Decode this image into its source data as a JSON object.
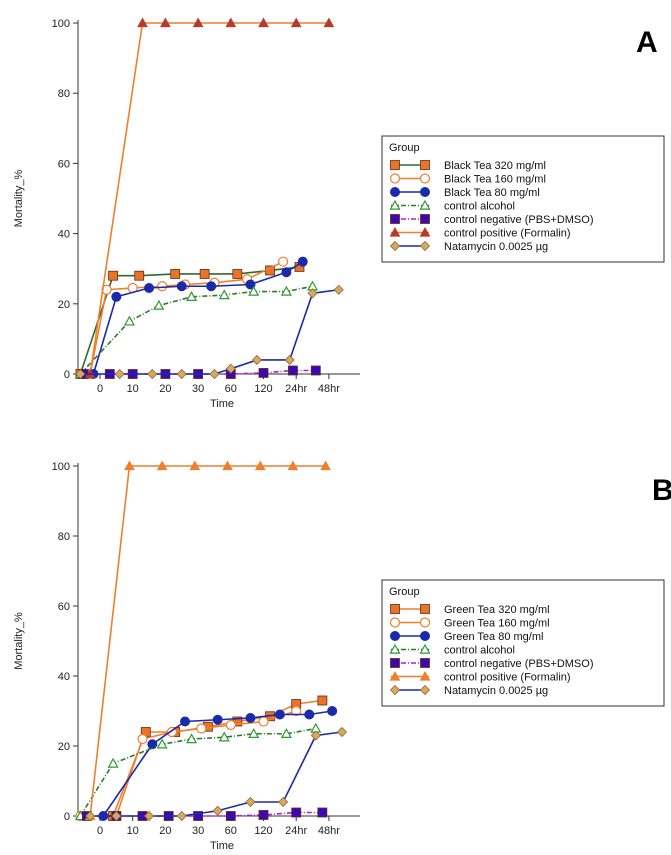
{
  "figure": {
    "panel_letters": [
      "A",
      "B"
    ]
  },
  "chart_data": [
    {
      "type": "line",
      "panel": "A",
      "title": "",
      "xlabel": "Time",
      "ylabel": "Mortality_%",
      "ylim": [
        0,
        100
      ],
      "yticks": [
        0,
        20,
        40,
        60,
        80,
        100
      ],
      "categories": [
        "0",
        "10",
        "20",
        "30",
        "60",
        "120",
        "24hr",
        "48hr"
      ],
      "legend_title": "Group",
      "legend_position": "right",
      "grid": false,
      "series": [
        {
          "name": "Black Tea 320 mg/ml",
          "color": "#2e6b2e",
          "marker": "square",
          "marker_color": "#e8742a",
          "dash": "solid",
          "points": [
            [
              -0.6,
              0
            ],
            [
              0.4,
              28
            ],
            [
              1.2,
              28
            ],
            [
              2.3,
              28.5
            ],
            [
              3.2,
              28.5
            ],
            [
              4.2,
              28.5
            ],
            [
              5.2,
              29.5
            ],
            [
              6.1,
              30.5
            ]
          ]
        },
        {
          "name": "Black Tea 160 mg/ml",
          "color": "#ee7f2e",
          "marker": "circle-open",
          "marker_color": "#ee7f2e",
          "dash": "solid",
          "points": [
            [
              -0.3,
              0
            ],
            [
              0.2,
              24
            ],
            [
              1.0,
              24.5
            ],
            [
              1.9,
              25
            ],
            [
              2.6,
              25.5
            ],
            [
              3.5,
              26
            ],
            [
              4.5,
              27
            ],
            [
              5.6,
              32
            ]
          ]
        },
        {
          "name": "Black Tea 80 mg/ml",
          "color": "#1a2aa8",
          "marker": "circle",
          "marker_color": "#1a2aa8",
          "dash": "solid",
          "points": [
            [
              -0.2,
              0
            ],
            [
              0.5,
              22
            ],
            [
              1.5,
              24.5
            ],
            [
              2.5,
              25
            ],
            [
              3.4,
              25
            ],
            [
              4.6,
              25.5
            ],
            [
              5.7,
              29
            ],
            [
              6.2,
              32
            ]
          ]
        },
        {
          "name": "control alcohol",
          "color": "#2d7a2d",
          "marker": "triangle-open",
          "marker_color": "#2d9a2d",
          "dash": "dashdot",
          "points": [
            [
              -0.6,
              0
            ],
            [
              0.9,
              15
            ],
            [
              1.8,
              19.5
            ],
            [
              2.8,
              22
            ],
            [
              3.8,
              22.5
            ],
            [
              4.7,
              23.5
            ],
            [
              5.7,
              23.5
            ],
            [
              6.5,
              25
            ]
          ]
        },
        {
          "name": "control negative (PBS+DMSO)",
          "color": "#b020d0",
          "marker": "square",
          "marker_color": "#3a0ab0",
          "dash": "dashdot",
          "points": [
            [
              -0.5,
              0
            ],
            [
              0.3,
              0
            ],
            [
              1.0,
              0
            ],
            [
              2.0,
              0
            ],
            [
              3.0,
              0
            ],
            [
              4.0,
              0
            ],
            [
              5.0,
              0.3
            ],
            [
              5.9,
              1
            ],
            [
              6.6,
              1
            ]
          ]
        },
        {
          "name": "control positive (Formalin)",
          "color": "#ee7f2e",
          "marker": "triangle",
          "marker_color": "#b83a2a",
          "dash": "solid",
          "points": [
            [
              -0.3,
              0
            ],
            [
              1.3,
              100
            ],
            [
              2.0,
              100
            ],
            [
              3.0,
              100
            ],
            [
              4.0,
              100
            ],
            [
              5.0,
              100
            ],
            [
              6.0,
              100
            ],
            [
              7.0,
              100
            ]
          ]
        },
        {
          "name": "Natamycin 0.0025 µg",
          "color": "#1a2aa8",
          "marker": "diamond",
          "marker_color": "#d8a860",
          "dash": "solid",
          "points": [
            [
              -0.6,
              0
            ],
            [
              0.6,
              0
            ],
            [
              1.6,
              0
            ],
            [
              2.5,
              0
            ],
            [
              3.5,
              0
            ],
            [
              4.0,
              1.5
            ],
            [
              4.8,
              4
            ],
            [
              5.8,
              4
            ],
            [
              6.5,
              23
            ],
            [
              7.3,
              24
            ]
          ]
        }
      ]
    },
    {
      "type": "line",
      "panel": "B",
      "title": "",
      "xlabel": "Time",
      "ylabel": "Mortality_%",
      "ylim": [
        0,
        100
      ],
      "yticks": [
        0,
        20,
        40,
        60,
        80,
        100
      ],
      "categories": [
        "0",
        "10",
        "20",
        "30",
        "60",
        "120",
        "24hr",
        "48hr"
      ],
      "legend_title": "Group",
      "legend_position": "right",
      "grid": false,
      "series": [
        {
          "name": "Green Tea 320 mg/ml",
          "color": "#ee7f2e",
          "marker": "square",
          "marker_color": "#e8742a",
          "dash": "solid",
          "points": [
            [
              0.4,
              0
            ],
            [
              1.4,
              24
            ],
            [
              2.3,
              24
            ],
            [
              3.3,
              25.5
            ],
            [
              4.2,
              27
            ],
            [
              5.2,
              28.5
            ],
            [
              6.0,
              32
            ],
            [
              6.8,
              33
            ]
          ]
        },
        {
          "name": "Green Tea 160 mg/ml",
          "color": "#ee7f2e",
          "marker": "circle-open",
          "marker_color": "#ee7f2e",
          "dash": "solid",
          "points": [
            [
              -0.6,
              0
            ],
            [
              0.5,
              0
            ],
            [
              1.3,
              22
            ],
            [
              2.2,
              24
            ],
            [
              3.1,
              25
            ],
            [
              4.0,
              26
            ],
            [
              5.0,
              27
            ],
            [
              6.0,
              30
            ]
          ]
        },
        {
          "name": "Green Tea 80 mg/ml",
          "color": "#1a2aa8",
          "marker": "circle",
          "marker_color": "#1a2aa8",
          "dash": "solid",
          "points": [
            [
              0.1,
              0
            ],
            [
              1.6,
              20.5
            ],
            [
              2.6,
              27
            ],
            [
              3.6,
              27.5
            ],
            [
              4.6,
              28
            ],
            [
              5.5,
              29
            ],
            [
              6.4,
              29
            ],
            [
              7.1,
              30
            ]
          ]
        },
        {
          "name": "control alcohol",
          "color": "#2d7a2d",
          "marker": "triangle-open",
          "marker_color": "#2d9a2d",
          "dash": "dashdot",
          "points": [
            [
              -0.6,
              0
            ],
            [
              0.4,
              15
            ],
            [
              1.9,
              20.5
            ],
            [
              2.8,
              22
            ],
            [
              3.8,
              22.5
            ],
            [
              4.7,
              23.5
            ],
            [
              5.7,
              23.5
            ],
            [
              6.6,
              25
            ]
          ]
        },
        {
          "name": "control negative (PBS+DMSO)",
          "color": "#b020d0",
          "marker": "square",
          "marker_color": "#3a0ab0",
          "dash": "dashdot",
          "points": [
            [
              -0.4,
              0
            ],
            [
              0.5,
              0
            ],
            [
              1.3,
              0
            ],
            [
              2.1,
              0
            ],
            [
              3.0,
              0
            ],
            [
              4.0,
              0
            ],
            [
              5.0,
              0.3
            ],
            [
              6.0,
              1
            ],
            [
              6.8,
              1
            ]
          ]
        },
        {
          "name": "control positive (Formalin)",
          "color": "#ee7f2e",
          "marker": "triangle",
          "marker_color": "#ee7f2e",
          "dash": "solid",
          "points": [
            [
              -0.3,
              0
            ],
            [
              0.9,
              100
            ],
            [
              1.9,
              100
            ],
            [
              2.9,
              100
            ],
            [
              3.9,
              100
            ],
            [
              4.9,
              100
            ],
            [
              5.9,
              100
            ],
            [
              6.9,
              100
            ]
          ]
        },
        {
          "name": "Natamycin 0.0025 µg",
          "color": "#1a2aa8",
          "marker": "diamond",
          "marker_color": "#d8a860",
          "dash": "solid",
          "points": [
            [
              -0.3,
              0
            ],
            [
              0.5,
              0
            ],
            [
              1.5,
              0
            ],
            [
              2.5,
              0
            ],
            [
              3.6,
              1.5
            ],
            [
              4.6,
              4
            ],
            [
              5.6,
              4
            ],
            [
              6.6,
              23
            ],
            [
              7.4,
              24
            ]
          ]
        }
      ]
    }
  ]
}
